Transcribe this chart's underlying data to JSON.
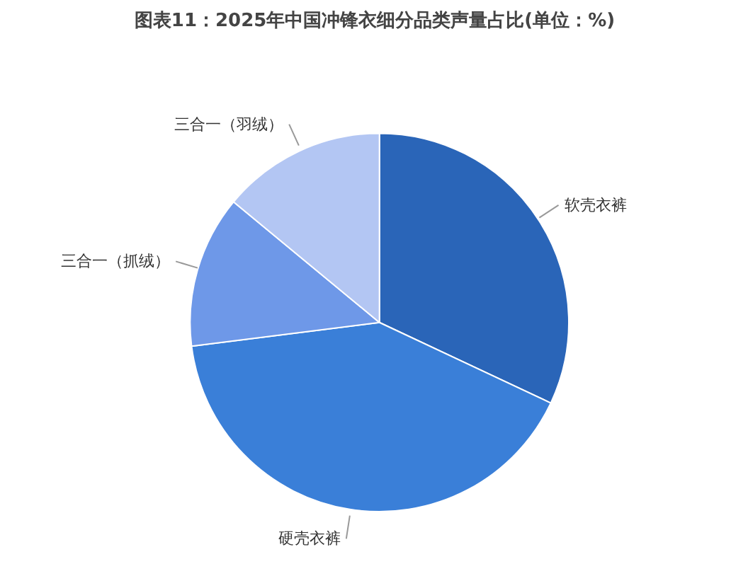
{
  "chart_data": {
    "type": "pie",
    "title": "图表11：2025年中国冲锋衣细分品类声量占比(单位：%)",
    "categories": [
      "软壳衣裤",
      "硬壳衣裤",
      "三合一（抓绒）",
      "三合一（羽绒）"
    ],
    "values": [
      32,
      41,
      13,
      14
    ],
    "colors": [
      "#2a65b8",
      "#3a7fd8",
      "#6e98e8",
      "#b3c6f3"
    ]
  }
}
